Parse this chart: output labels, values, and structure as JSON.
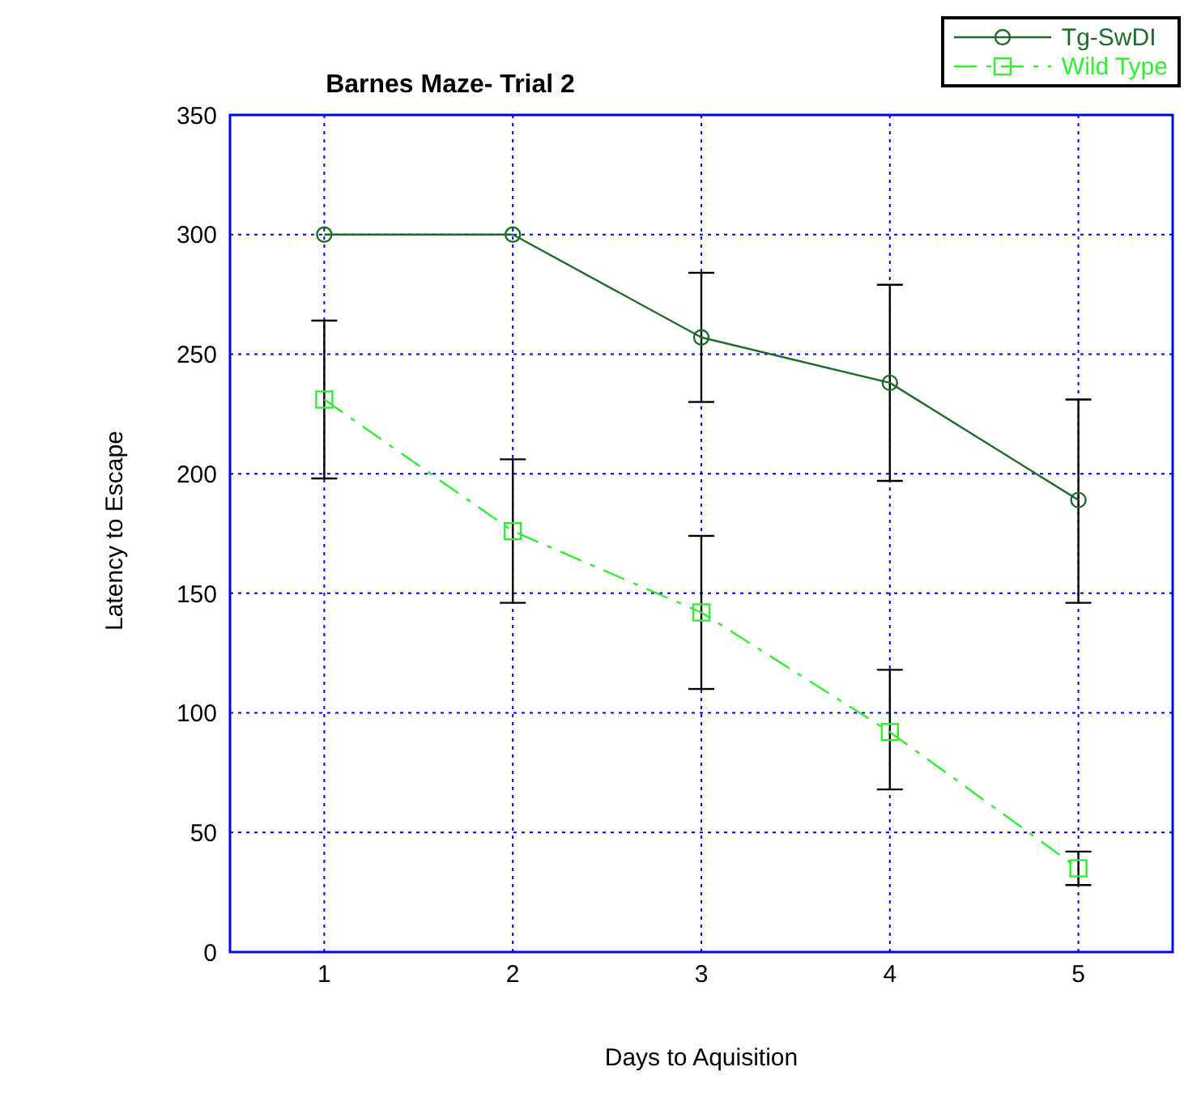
{
  "chart_data": {
    "type": "line",
    "title": "Barnes Maze- Trial 2",
    "xlabel": "Days to Aquisition",
    "ylabel": "Latency to Escape",
    "x": [
      1,
      2,
      3,
      4,
      5
    ],
    "series": [
      {
        "name": "Tg-SwDI",
        "color": "#1e6b2a",
        "values": [
          300,
          300,
          257,
          238,
          189
        ],
        "errors": [
          null,
          null,
          [
            230,
            284
          ],
          [
            197,
            279
          ],
          [
            146,
            231
          ]
        ],
        "marker": "circle",
        "line_style": "solid"
      },
      {
        "name": "Wild Type",
        "color": "#33ee33",
        "values": [
          231,
          176,
          142,
          92,
          35
        ],
        "errors": [
          [
            198,
            264
          ],
          [
            146,
            206
          ],
          [
            110,
            174
          ],
          [
            68,
            118
          ],
          [
            28,
            42
          ]
        ],
        "marker": "square",
        "line_style": "dashed"
      }
    ],
    "xlim": [
      0.5,
      5.5
    ],
    "xticks": [
      1,
      2,
      3,
      4,
      5
    ],
    "ylim": [
      0,
      350
    ],
    "yticks": [
      0,
      50,
      100,
      150,
      200,
      250,
      300,
      350
    ],
    "grid": true,
    "legend": "top right"
  }
}
